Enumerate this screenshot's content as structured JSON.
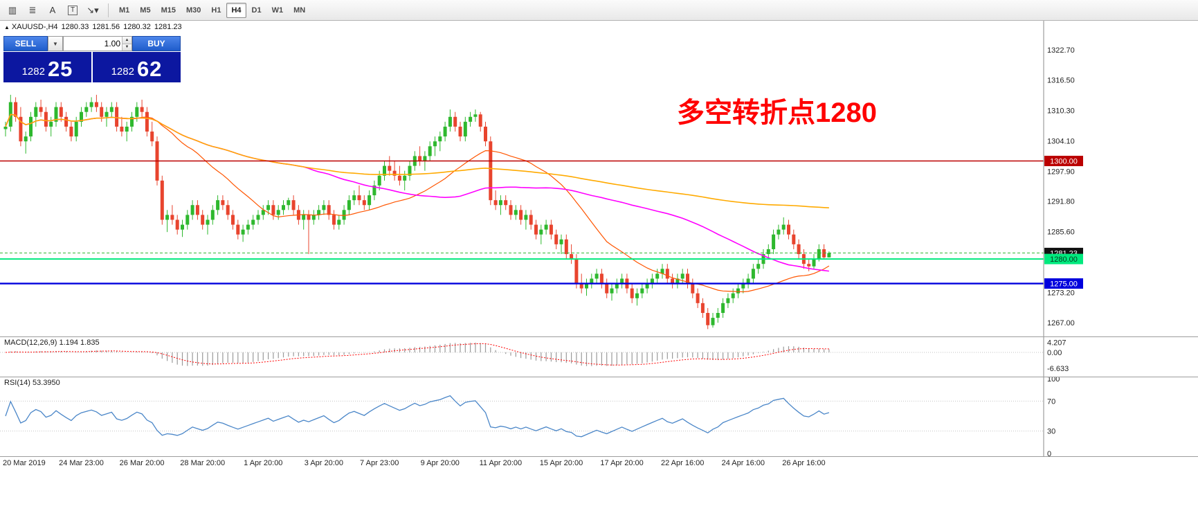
{
  "toolbar": {
    "icons": [
      {
        "name": "candlestick-chart-icon",
        "glyph": "▥"
      },
      {
        "name": "indicators-list-icon",
        "glyph": "≣"
      },
      {
        "name": "text-label-icon",
        "glyph": "A"
      },
      {
        "name": "text-tool-icon",
        "glyph": "T",
        "boxed": true
      },
      {
        "name": "shapes-dropdown-icon",
        "glyph": "↘▾"
      }
    ],
    "timeframes": [
      "M1",
      "M5",
      "M15",
      "M30",
      "H1",
      "H4",
      "D1",
      "W1",
      "MN"
    ],
    "active_timeframe": "H4"
  },
  "header": {
    "symbol": "XAUUSD-,H4",
    "open": "1280.33",
    "high": "1281.56",
    "low": "1280.32",
    "close": "1281.23"
  },
  "trade_panel": {
    "sell_label": "SELL",
    "buy_label": "BUY",
    "volume": "1.00",
    "sell_price_big": "1282",
    "sell_price_pips": "25",
    "buy_price_big": "1282",
    "buy_price_pips": "62",
    "panel_color": "#0c17a0",
    "button_color": "#2f6fd6"
  },
  "annotation": {
    "text": "多空转折点1280",
    "color": "#ff0000"
  },
  "main_axis": {
    "ticks": [
      {
        "label": "1322.70",
        "value": 1322.7
      },
      {
        "label": "1316.50",
        "value": 1316.5
      },
      {
        "label": "1310.30",
        "value": 1310.3
      },
      {
        "label": "1304.10",
        "value": 1304.1
      },
      {
        "label": "1297.90",
        "value": 1297.9
      },
      {
        "label": "1291.80",
        "value": 1291.8
      },
      {
        "label": "1285.60",
        "value": 1285.6
      },
      {
        "label": "1273.20",
        "value": 1273.2
      },
      {
        "label": "1267.00",
        "value": 1267.0
      }
    ],
    "price_tags": [
      {
        "label": "1300.00",
        "value": 1300.0,
        "bg": "#bb0000",
        "fg": "#ffffff"
      },
      {
        "label": "1281.23",
        "value": 1281.23,
        "bg": "#111111",
        "fg": "#ffffff"
      },
      {
        "label": "1280.00",
        "value": 1280.0,
        "bg": "#00e97e",
        "fg": "#063b1f"
      },
      {
        "label": "1275.00",
        "value": 1275.0,
        "bg": "#0000dd",
        "fg": "#ffffff"
      }
    ]
  },
  "chart_data": {
    "type": "candlestick",
    "symbol": "XAUUSD",
    "period": "H4",
    "y_range": [
      1264.2,
      1328.6
    ],
    "up_color": "#2eb82e",
    "down_color": "#e8442e",
    "hlines": [
      {
        "value": 1300.0,
        "color": "#bb0000",
        "width": 1.4,
        "dash": ""
      },
      {
        "value": 1281.23,
        "color": "#2eb82e",
        "width": 1,
        "dash": "4,3"
      },
      {
        "value": 1280.0,
        "color": "#00e97e",
        "width": 2,
        "dash": ""
      },
      {
        "value": 1275.0,
        "color": "#0000dd",
        "width": 2.4,
        "dash": ""
      }
    ],
    "moving_averages": [
      {
        "name": "ma-fast-line",
        "period": 24,
        "color": "#ff5500",
        "width": 1.2
      },
      {
        "name": "ma-medium-line",
        "period": 60,
        "color": "#ff00ff",
        "width": 1.6
      },
      {
        "name": "ma-slow-line",
        "period": 200,
        "color": "#ffaa00",
        "width": 1.6
      }
    ],
    "x_labels": [
      {
        "text": "20 Mar 2019",
        "index": 0
      },
      {
        "text": "24 Mar 23:00",
        "index": 15
      },
      {
        "text": "26 Mar 20:00",
        "index": 27
      },
      {
        "text": "28 Mar 20:00",
        "index": 39
      },
      {
        "text": "1 Apr 20:00",
        "index": 51
      },
      {
        "text": "3 Apr 20:00",
        "index": 63
      },
      {
        "text": "7 Apr 23:00",
        "index": 74
      },
      {
        "text": "9 Apr 20:00",
        "index": 86
      },
      {
        "text": "11 Apr 20:00",
        "index": 98
      },
      {
        "text": "15 Apr 20:00",
        "index": 110
      },
      {
        "text": "17 Apr 20:00",
        "index": 122
      },
      {
        "text": "22 Apr 16:00",
        "index": 134
      },
      {
        "text": "24 Apr 16:00",
        "index": 146
      },
      {
        "text": "26 Apr 16:00",
        "index": 158
      }
    ],
    "candles": [
      [
        1306.5,
        1308,
        1305,
        1307
      ],
      [
        1307,
        1313.5,
        1306,
        1312
      ],
      [
        1312,
        1313,
        1308,
        1309
      ],
      [
        1309,
        1311,
        1303,
        1304
      ],
      [
        1304,
        1306,
        1301.5,
        1305
      ],
      [
        1305,
        1310,
        1304,
        1309
      ],
      [
        1309,
        1312,
        1307,
        1311
      ],
      [
        1311,
        1312.5,
        1309,
        1310
      ],
      [
        1310,
        1311,
        1306,
        1307
      ],
      [
        1307,
        1309,
        1305,
        1308
      ],
      [
        1308,
        1312,
        1307,
        1311
      ],
      [
        1311,
        1312,
        1308,
        1309
      ],
      [
        1309,
        1310,
        1306,
        1307
      ],
      [
        1307,
        1308,
        1304,
        1305
      ],
      [
        1305,
        1309,
        1304,
        1308
      ],
      [
        1308,
        1311,
        1307,
        1310
      ],
      [
        1310,
        1312,
        1309,
        1311
      ],
      [
        1311,
        1313,
        1310,
        1312
      ],
      [
        1312,
        1313.5,
        1310,
        1311
      ],
      [
        1311,
        1312,
        1308,
        1309
      ],
      [
        1309,
        1311,
        1307,
        1310
      ],
      [
        1310,
        1312,
        1309,
        1311
      ],
      [
        1311,
        1312,
        1306,
        1307
      ],
      [
        1307,
        1309,
        1305,
        1306
      ],
      [
        1306,
        1308,
        1304,
        1307
      ],
      [
        1307,
        1310,
        1306,
        1309
      ],
      [
        1309,
        1312,
        1308,
        1311
      ],
      [
        1311,
        1312.5,
        1309,
        1310
      ],
      [
        1310,
        1311,
        1305,
        1306
      ],
      [
        1306,
        1308,
        1303,
        1304
      ],
      [
        1304,
        1305,
        1295,
        1296
      ],
      [
        1296,
        1297,
        1287,
        1288
      ],
      [
        1288,
        1290,
        1285.5,
        1289
      ],
      [
        1289,
        1291,
        1287,
        1288
      ],
      [
        1288,
        1289,
        1285,
        1286
      ],
      [
        1286,
        1288,
        1284.5,
        1287
      ],
      [
        1287,
        1290,
        1286,
        1289
      ],
      [
        1289,
        1292,
        1288,
        1291
      ],
      [
        1291,
        1292,
        1288,
        1289
      ],
      [
        1289,
        1290,
        1286,
        1287
      ],
      [
        1287,
        1289,
        1285,
        1288
      ],
      [
        1288,
        1291,
        1287,
        1290
      ],
      [
        1290,
        1293,
        1289,
        1292
      ],
      [
        1292,
        1293,
        1290,
        1291
      ],
      [
        1291,
        1292,
        1288,
        1289
      ],
      [
        1289,
        1290,
        1286,
        1287
      ],
      [
        1287,
        1288,
        1284,
        1285
      ],
      [
        1285,
        1287,
        1283.5,
        1286
      ],
      [
        1286,
        1288,
        1285,
        1287
      ],
      [
        1287,
        1289,
        1286,
        1288
      ],
      [
        1288,
        1290,
        1287,
        1289
      ],
      [
        1289,
        1291,
        1288,
        1290
      ],
      [
        1290,
        1292,
        1289,
        1291
      ],
      [
        1291,
        1292,
        1288,
        1289
      ],
      [
        1289,
        1291,
        1288,
        1290
      ],
      [
        1290,
        1292,
        1289,
        1291
      ],
      [
        1291,
        1292.5,
        1290,
        1292
      ],
      [
        1292,
        1293,
        1289,
        1290
      ],
      [
        1290,
        1291,
        1287,
        1288
      ],
      [
        1288,
        1290,
        1286,
        1289
      ],
      [
        1289,
        1290,
        1281,
        1288
      ],
      [
        1288,
        1290,
        1287,
        1289
      ],
      [
        1289,
        1291,
        1288,
        1290
      ],
      [
        1290,
        1292,
        1289,
        1291
      ],
      [
        1291,
        1292,
        1288,
        1289
      ],
      [
        1289,
        1290,
        1286,
        1287
      ],
      [
        1287,
        1289,
        1286,
        1288
      ],
      [
        1288,
        1291,
        1287,
        1290
      ],
      [
        1290,
        1293,
        1289,
        1292
      ],
      [
        1292,
        1294,
        1291,
        1293
      ],
      [
        1293,
        1295,
        1291,
        1292
      ],
      [
        1292,
        1293,
        1290,
        1291
      ],
      [
        1291,
        1294,
        1290,
        1293
      ],
      [
        1293,
        1296,
        1292,
        1295
      ],
      [
        1295,
        1298,
        1294,
        1297
      ],
      [
        1297,
        1300,
        1296,
        1299
      ],
      [
        1299,
        1301,
        1297,
        1298
      ],
      [
        1298,
        1300,
        1296,
        1297
      ],
      [
        1297,
        1299,
        1295,
        1296
      ],
      [
        1296,
        1298,
        1294,
        1297
      ],
      [
        1297,
        1300,
        1296,
        1299
      ],
      [
        1299,
        1302,
        1298,
        1301
      ],
      [
        1301,
        1303,
        1299,
        1300
      ],
      [
        1300,
        1302,
        1298,
        1301
      ],
      [
        1301,
        1304,
        1300,
        1303
      ],
      [
        1303,
        1305,
        1301,
        1304
      ],
      [
        1304,
        1306,
        1302,
        1305
      ],
      [
        1305,
        1308,
        1304,
        1307
      ],
      [
        1307,
        1310.5,
        1306,
        1309
      ],
      [
        1309,
        1310,
        1306,
        1307
      ],
      [
        1307,
        1308,
        1304,
        1305
      ],
      [
        1305,
        1309,
        1304,
        1308
      ],
      [
        1308,
        1310,
        1307,
        1309
      ],
      [
        1309,
        1310.5,
        1308,
        1309.5
      ],
      [
        1309.5,
        1310,
        1306,
        1307
      ],
      [
        1307,
        1308,
        1303,
        1304
      ],
      [
        1304,
        1305,
        1291,
        1292
      ],
      [
        1292,
        1294,
        1290,
        1291
      ],
      [
        1291,
        1293,
        1289,
        1292
      ],
      [
        1292,
        1293,
        1290,
        1291
      ],
      [
        1291,
        1292,
        1288,
        1289
      ],
      [
        1289,
        1291,
        1288,
        1290
      ],
      [
        1290,
        1291,
        1287,
        1288
      ],
      [
        1288,
        1290,
        1286,
        1289
      ],
      [
        1289,
        1290,
        1286,
        1287
      ],
      [
        1287,
        1288,
        1284,
        1285
      ],
      [
        1285,
        1287,
        1283,
        1286
      ],
      [
        1286,
        1288,
        1285,
        1287
      ],
      [
        1287,
        1288,
        1284,
        1285
      ],
      [
        1285,
        1286,
        1282,
        1283
      ],
      [
        1283,
        1285,
        1281,
        1284
      ],
      [
        1284,
        1285,
        1280,
        1281
      ],
      [
        1281,
        1283,
        1279,
        1280
      ],
      [
        1280,
        1281,
        1274,
        1275
      ],
      [
        1275,
        1277,
        1273,
        1274
      ],
      [
        1274,
        1276,
        1272.5,
        1275
      ],
      [
        1275,
        1277,
        1274,
        1276
      ],
      [
        1276,
        1278,
        1275,
        1277
      ],
      [
        1277,
        1278,
        1274,
        1275
      ],
      [
        1275,
        1276,
        1272,
        1273
      ],
      [
        1273,
        1275,
        1271.5,
        1274
      ],
      [
        1274,
        1276,
        1273,
        1275
      ],
      [
        1275,
        1277,
        1274,
        1276
      ],
      [
        1276,
        1277,
        1273,
        1274
      ],
      [
        1274,
        1275,
        1271,
        1272
      ],
      [
        1272,
        1274,
        1270.5,
        1273
      ],
      [
        1273,
        1275,
        1272,
        1274
      ],
      [
        1274,
        1276,
        1273,
        1275
      ],
      [
        1275,
        1277,
        1274,
        1276
      ],
      [
        1276,
        1278,
        1275,
        1277
      ],
      [
        1277,
        1279,
        1276,
        1278
      ],
      [
        1278,
        1279,
        1275,
        1276
      ],
      [
        1276,
        1277,
        1274,
        1275
      ],
      [
        1275,
        1277,
        1274,
        1276
      ],
      [
        1276,
        1278,
        1275,
        1277
      ],
      [
        1277,
        1278,
        1274,
        1275
      ],
      [
        1275,
        1276,
        1272,
        1273
      ],
      [
        1273,
        1274,
        1270,
        1271
      ],
      [
        1271,
        1272,
        1268,
        1269
      ],
      [
        1269,
        1270,
        1265.7,
        1266.5
      ],
      [
        1266.5,
        1269,
        1266,
        1268
      ],
      [
        1268,
        1270,
        1267,
        1269
      ],
      [
        1269,
        1272,
        1268,
        1271
      ],
      [
        1271,
        1273,
        1270,
        1272
      ],
      [
        1272,
        1274,
        1271,
        1273
      ],
      [
        1273,
        1275,
        1272,
        1274
      ],
      [
        1274,
        1276,
        1273,
        1275
      ],
      [
        1275,
        1277,
        1274,
        1276
      ],
      [
        1276,
        1279,
        1275,
        1278
      ],
      [
        1278,
        1280,
        1277,
        1279
      ],
      [
        1279,
        1282,
        1278,
        1281
      ],
      [
        1281,
        1283,
        1280,
        1282
      ],
      [
        1282,
        1286,
        1281,
        1285
      ],
      [
        1285,
        1287,
        1284,
        1286
      ],
      [
        1286,
        1288.5,
        1285,
        1287
      ],
      [
        1287,
        1288,
        1284,
        1285
      ],
      [
        1285,
        1286,
        1282,
        1283
      ],
      [
        1283,
        1284,
        1280,
        1281
      ],
      [
        1281,
        1282,
        1278,
        1279
      ],
      [
        1279,
        1280,
        1277.5,
        1278.5
      ],
      [
        1278.5,
        1281,
        1278,
        1280
      ],
      [
        1280,
        1283,
        1279.5,
        1282
      ],
      [
        1282,
        1283,
        1280,
        1280.33
      ],
      [
        1280.33,
        1281.56,
        1280.32,
        1281.23
      ]
    ]
  },
  "macd": {
    "label": "MACD(12,26,9) 1.194 1.835",
    "fast": 12,
    "slow": 26,
    "signal": 9,
    "y_range": [
      -10.0,
      6.3
    ],
    "hist_color": "#9a9a9a",
    "signal_color": "#ff0000",
    "axis": [
      {
        "label": "4.207",
        "value": 4.207
      },
      {
        "label": "0.00",
        "value": 0
      },
      {
        "label": "-6.633",
        "value": -6.633
      }
    ]
  },
  "rsi": {
    "label": "RSI(14) 53.3950",
    "period": 14,
    "color": "#4a86c8",
    "levels": [
      70,
      30
    ],
    "axis": [
      {
        "label": "100",
        "value": 100
      },
      {
        "label": "70",
        "value": 70
      },
      {
        "label": "30",
        "value": 30
      },
      {
        "label": "0",
        "value": 0
      }
    ]
  }
}
